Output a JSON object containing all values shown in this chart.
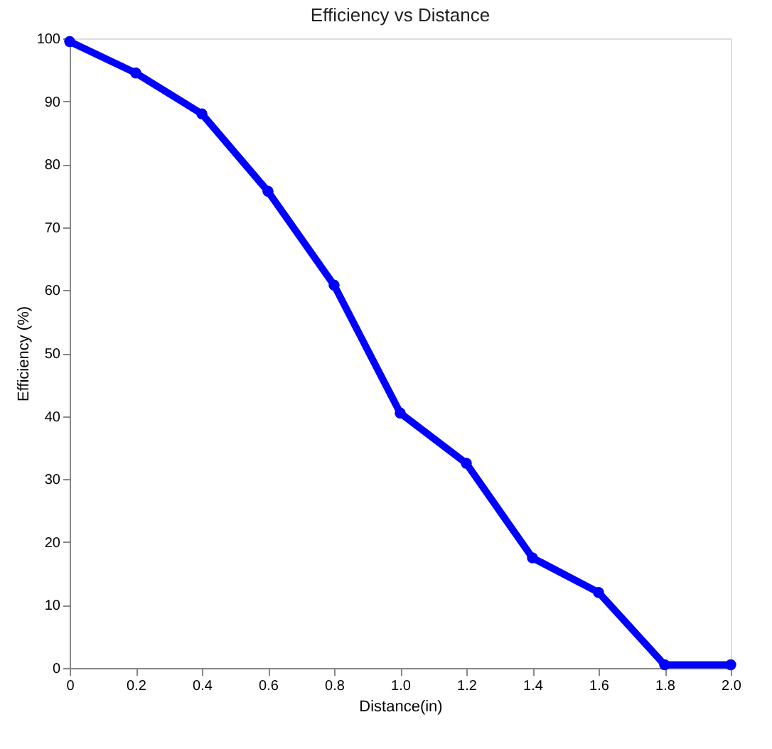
{
  "chart_data": {
    "type": "line",
    "title": "Efficiency vs Distance",
    "xlabel": "Distance(in)",
    "ylabel": "Efficiency  (%)",
    "x": [
      0,
      0.2,
      0.4,
      0.6,
      0.8,
      1.0,
      1.2,
      1.4,
      1.6,
      1.8,
      2.0
    ],
    "series": [
      {
        "color": "#0000ff",
        "values": [
          99.5,
          94.5,
          88,
          75.7,
          60.8,
          40.5,
          32.5,
          17.5,
          12,
          0.5,
          0.5
        ]
      }
    ],
    "xlim": [
      0,
      2
    ],
    "xticks": [
      0,
      0.2,
      0.4,
      0.6,
      0.8,
      {
        "value": 1,
        "label": "1.0"
      },
      1.2,
      1.4,
      1.6,
      1.8,
      {
        "value": 2,
        "label": "2.0"
      }
    ],
    "ylim": [
      0,
      100
    ],
    "yticks": [
      0,
      10,
      20,
      30,
      40,
      50,
      60,
      70,
      80,
      90,
      100
    ],
    "grid": false,
    "marker": "circle",
    "line_style": "solid"
  }
}
